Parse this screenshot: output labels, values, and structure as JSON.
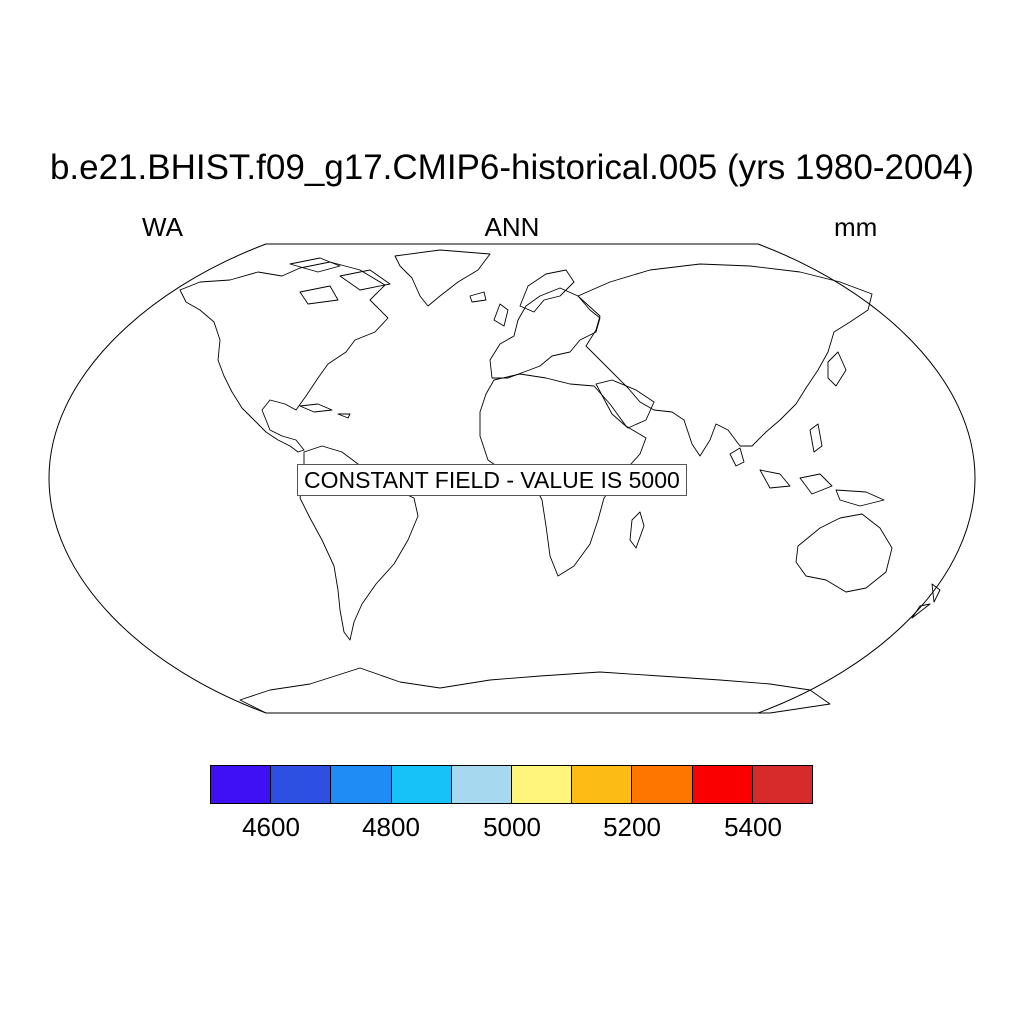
{
  "title": "b.e21.BHIST.f09_g17.CMIP6-historical.005 (yrs 1980-2004)",
  "subtitles": {
    "left": "WA",
    "center": "ANN",
    "right": "mm"
  },
  "map": {
    "projection": "Robinson",
    "land_outline_color": "#000000",
    "background": "#ffffff"
  },
  "annotation": "CONSTANT FIELD - VALUE IS 5000",
  "colorbar": {
    "colors": [
      "#4010f5",
      "#2d50e3",
      "#1f8cf5",
      "#16c2f7",
      "#a6d8f0",
      "#fff47c",
      "#fdbc14",
      "#fe7500",
      "#fb0000",
      "#d72a2a"
    ],
    "tick_labels": [
      "4600",
      "4800",
      "5000",
      "5200",
      "5400"
    ]
  }
}
